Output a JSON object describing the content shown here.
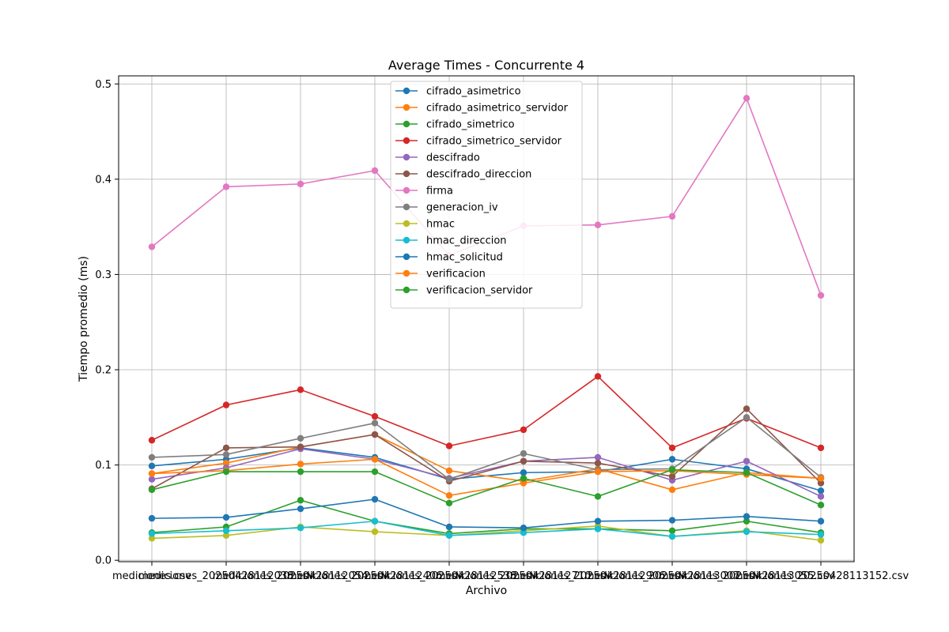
{
  "chart_data": {
    "type": "line",
    "title": "Average Times - Concurrente 4",
    "xlabel": "Archivo",
    "ylabel": "Tiempo promedio (ms)",
    "ylim": [
      -0.0015,
      0.5085
    ],
    "yticks": [
      "0.0",
      "0.1",
      "0.2",
      "0.3",
      "0.4",
      "0.5"
    ],
    "ytick_values": [
      0.0,
      0.1,
      0.2,
      0.3,
      0.4,
      0.5
    ],
    "grid": true,
    "legend_position": "top-center",
    "categories": [
      "mediciones.csv",
      "mediciones_20250428112038.csv",
      "mediciones_20250428112054.csv",
      "mediciones_20250428112406.csv",
      "mediciones_20250428112538.csv",
      "mediciones_20250428112710.csv",
      "mediciones_20250428112906.csv",
      "mediciones_20250428113007.csv",
      "mediciones_20250428113055.csv",
      "mediciones_20250428113152.csv"
    ],
    "series": [
      {
        "name": "cifrado_asimetrico",
        "color": "#1f77b4",
        "values": [
          0.099,
          0.106,
          0.118,
          0.108,
          0.085,
          0.092,
          0.093,
          0.106,
          0.096,
          0.073
        ]
      },
      {
        "name": "cifrado_asimetrico_servidor",
        "color": "#ff7f0e",
        "values": [
          0.091,
          0.102,
          0.119,
          0.132,
          0.094,
          0.083,
          0.096,
          0.074,
          0.092,
          0.086
        ]
      },
      {
        "name": "cifrado_simetrico",
        "color": "#2ca02c",
        "values": [
          0.029,
          0.035,
          0.063,
          0.041,
          0.028,
          0.033,
          0.033,
          0.031,
          0.041,
          0.029
        ]
      },
      {
        "name": "cifrado_simetrico_servidor",
        "color": "#d62728",
        "values": [
          0.126,
          0.163,
          0.179,
          0.151,
          0.12,
          0.137,
          0.193,
          0.118,
          0.149,
          0.118
        ]
      },
      {
        "name": "descifrado",
        "color": "#9467bd",
        "values": [
          0.085,
          0.097,
          0.117,
          0.106,
          0.086,
          0.104,
          0.108,
          0.084,
          0.104,
          0.067
        ]
      },
      {
        "name": "descifrado_direccion",
        "color": "#8c564b",
        "values": [
          0.075,
          0.118,
          0.119,
          0.132,
          0.083,
          0.104,
          0.102,
          0.088,
          0.159,
          0.081
        ]
      },
      {
        "name": "firma",
        "color": "#e377c2",
        "values": [
          0.329,
          0.392,
          0.395,
          0.409,
          0.32,
          0.351,
          0.352,
          0.361,
          0.485,
          0.278
        ]
      },
      {
        "name": "generacion_iv",
        "color": "#7f7f7f",
        "values": [
          0.108,
          0.111,
          0.128,
          0.144,
          0.085,
          0.112,
          0.095,
          0.096,
          0.15,
          0.087
        ]
      },
      {
        "name": "hmac",
        "color": "#bcbd22",
        "values": [
          0.023,
          0.026,
          0.035,
          0.03,
          0.026,
          0.031,
          0.036,
          0.025,
          0.031,
          0.021
        ]
      },
      {
        "name": "hmac_direccion",
        "color": "#17becf",
        "values": [
          0.028,
          0.031,
          0.034,
          0.041,
          0.026,
          0.029,
          0.033,
          0.025,
          0.03,
          0.027
        ]
      },
      {
        "name": "hmac_solicitud",
        "color": "#1f77b4",
        "values": [
          0.044,
          0.045,
          0.054,
          0.064,
          0.035,
          0.034,
          0.041,
          0.042,
          0.046,
          0.041
        ]
      },
      {
        "name": "verificacion",
        "color": "#ff7f0e",
        "values": [
          0.091,
          0.094,
          0.101,
          0.106,
          0.068,
          0.081,
          0.093,
          0.094,
          0.09,
          0.086
        ]
      },
      {
        "name": "verificacion_servidor",
        "color": "#2ca02c",
        "values": [
          0.074,
          0.093,
          0.093,
          0.093,
          0.06,
          0.086,
          0.067,
          0.095,
          0.092,
          0.058
        ]
      }
    ]
  }
}
